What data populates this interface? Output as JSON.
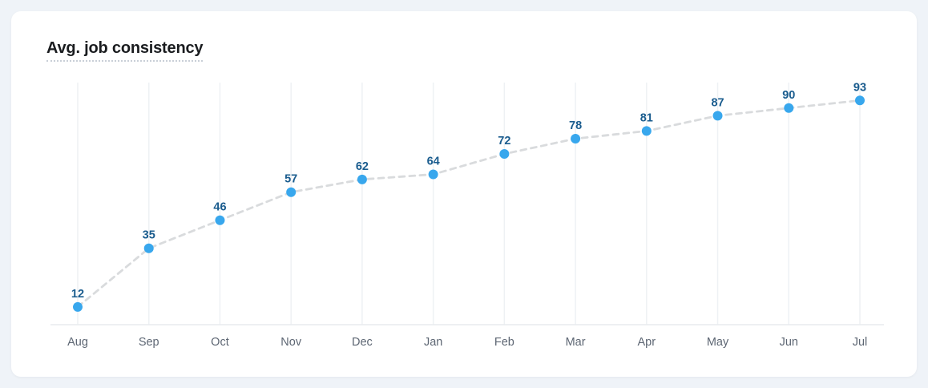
{
  "card": {
    "title": "Avg. job consistency"
  },
  "chart_data": {
    "type": "line",
    "title": "Avg. job consistency",
    "categories": [
      "Aug",
      "Sep",
      "Oct",
      "Nov",
      "Dec",
      "Jan",
      "Feb",
      "Mar",
      "Apr",
      "May",
      "Jun",
      "Jul"
    ],
    "values": [
      12,
      35,
      46,
      57,
      62,
      64,
      72,
      78,
      81,
      87,
      90,
      93
    ],
    "xlabel": "",
    "ylabel": "",
    "ylim": [
      0,
      100
    ],
    "grid": "vertical-only",
    "legend": "none",
    "data_labels": "above-points",
    "line_style": "dashed",
    "colors": {
      "point": "#38a7ed",
      "value_label": "#1a5c8e",
      "line": "#d9dbdd",
      "gridline": "#eef1f4",
      "axis": "#e8ebee",
      "tick_label": "#5d6673"
    }
  }
}
